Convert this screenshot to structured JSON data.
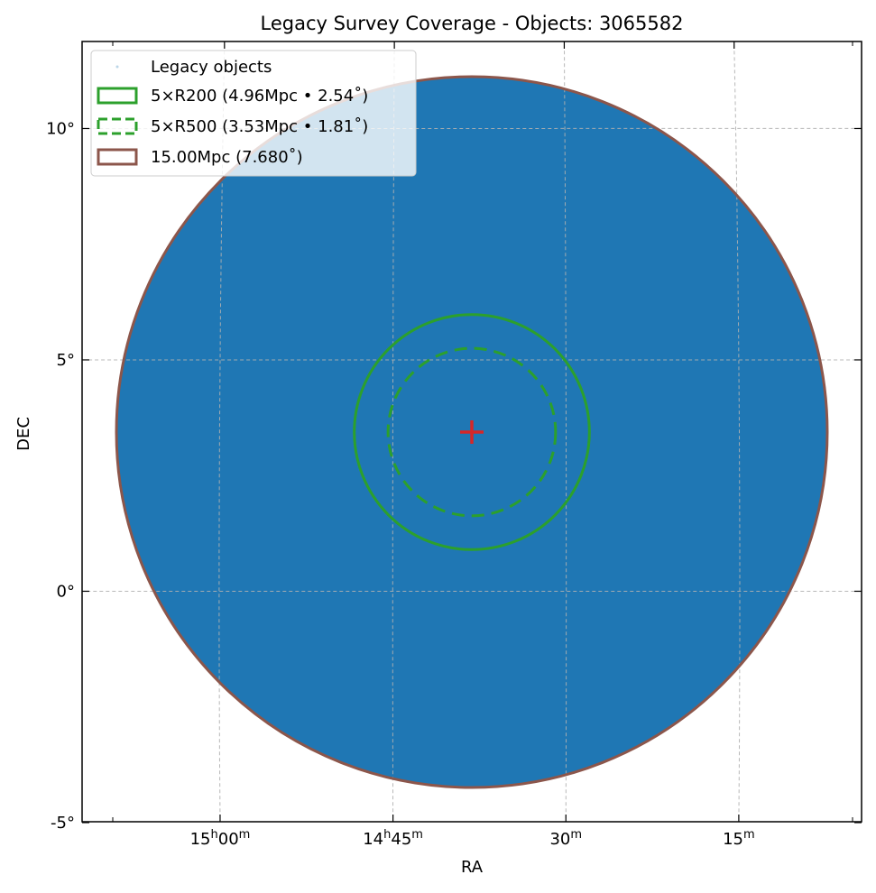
{
  "chart_data": {
    "type": "scatter",
    "title": "Legacy Survey Coverage - Objects: 3065582",
    "xlabel": "RA",
    "ylabel": "DEC",
    "dec_ticks": [
      {
        "value": -5,
        "label": "-5°"
      },
      {
        "value": 0,
        "label": "0°"
      },
      {
        "value": 5,
        "label": "5°"
      },
      {
        "value": 10,
        "label": "10°"
      }
    ],
    "ra_ticks": [
      {
        "value_deg": 225.0,
        "label": "15h00m",
        "hours": "15",
        "minutes": "00"
      },
      {
        "value_deg": 221.25,
        "label": "14h45m",
        "hours": "14",
        "minutes": "45"
      },
      {
        "value_deg": 217.5,
        "label": "30m",
        "hours": "",
        "minutes": "30"
      },
      {
        "value_deg": 213.75,
        "label": "15m",
        "hours": "",
        "minutes": "15"
      }
    ],
    "grid": true,
    "center": {
      "ra_deg": 219.54,
      "dec_deg": 3.44
    },
    "series": [
      {
        "name": "Legacy objects",
        "kind": "scatter",
        "count": 3065582,
        "color": "#1f77b4",
        "footprint_radius_deg": 7.68
      }
    ],
    "circles": [
      {
        "name": "5×R200 (4.96Mpc • 2.54˚)",
        "radius_deg": 2.54,
        "color": "#2ca02c",
        "style": "solid"
      },
      {
        "name": "5×R500 (3.53Mpc • 1.81˚)",
        "radius_deg": 1.81,
        "color": "#2ca02c",
        "style": "dashed"
      },
      {
        "name": "15.00Mpc (7.680˚)",
        "radius_deg": 7.68,
        "color": "#8c564b",
        "style": "solid"
      }
    ],
    "center_marker": {
      "symbol": "+",
      "color": "#d62728"
    },
    "legend_position": "upper left",
    "ylim": [
      -5,
      12
    ]
  }
}
